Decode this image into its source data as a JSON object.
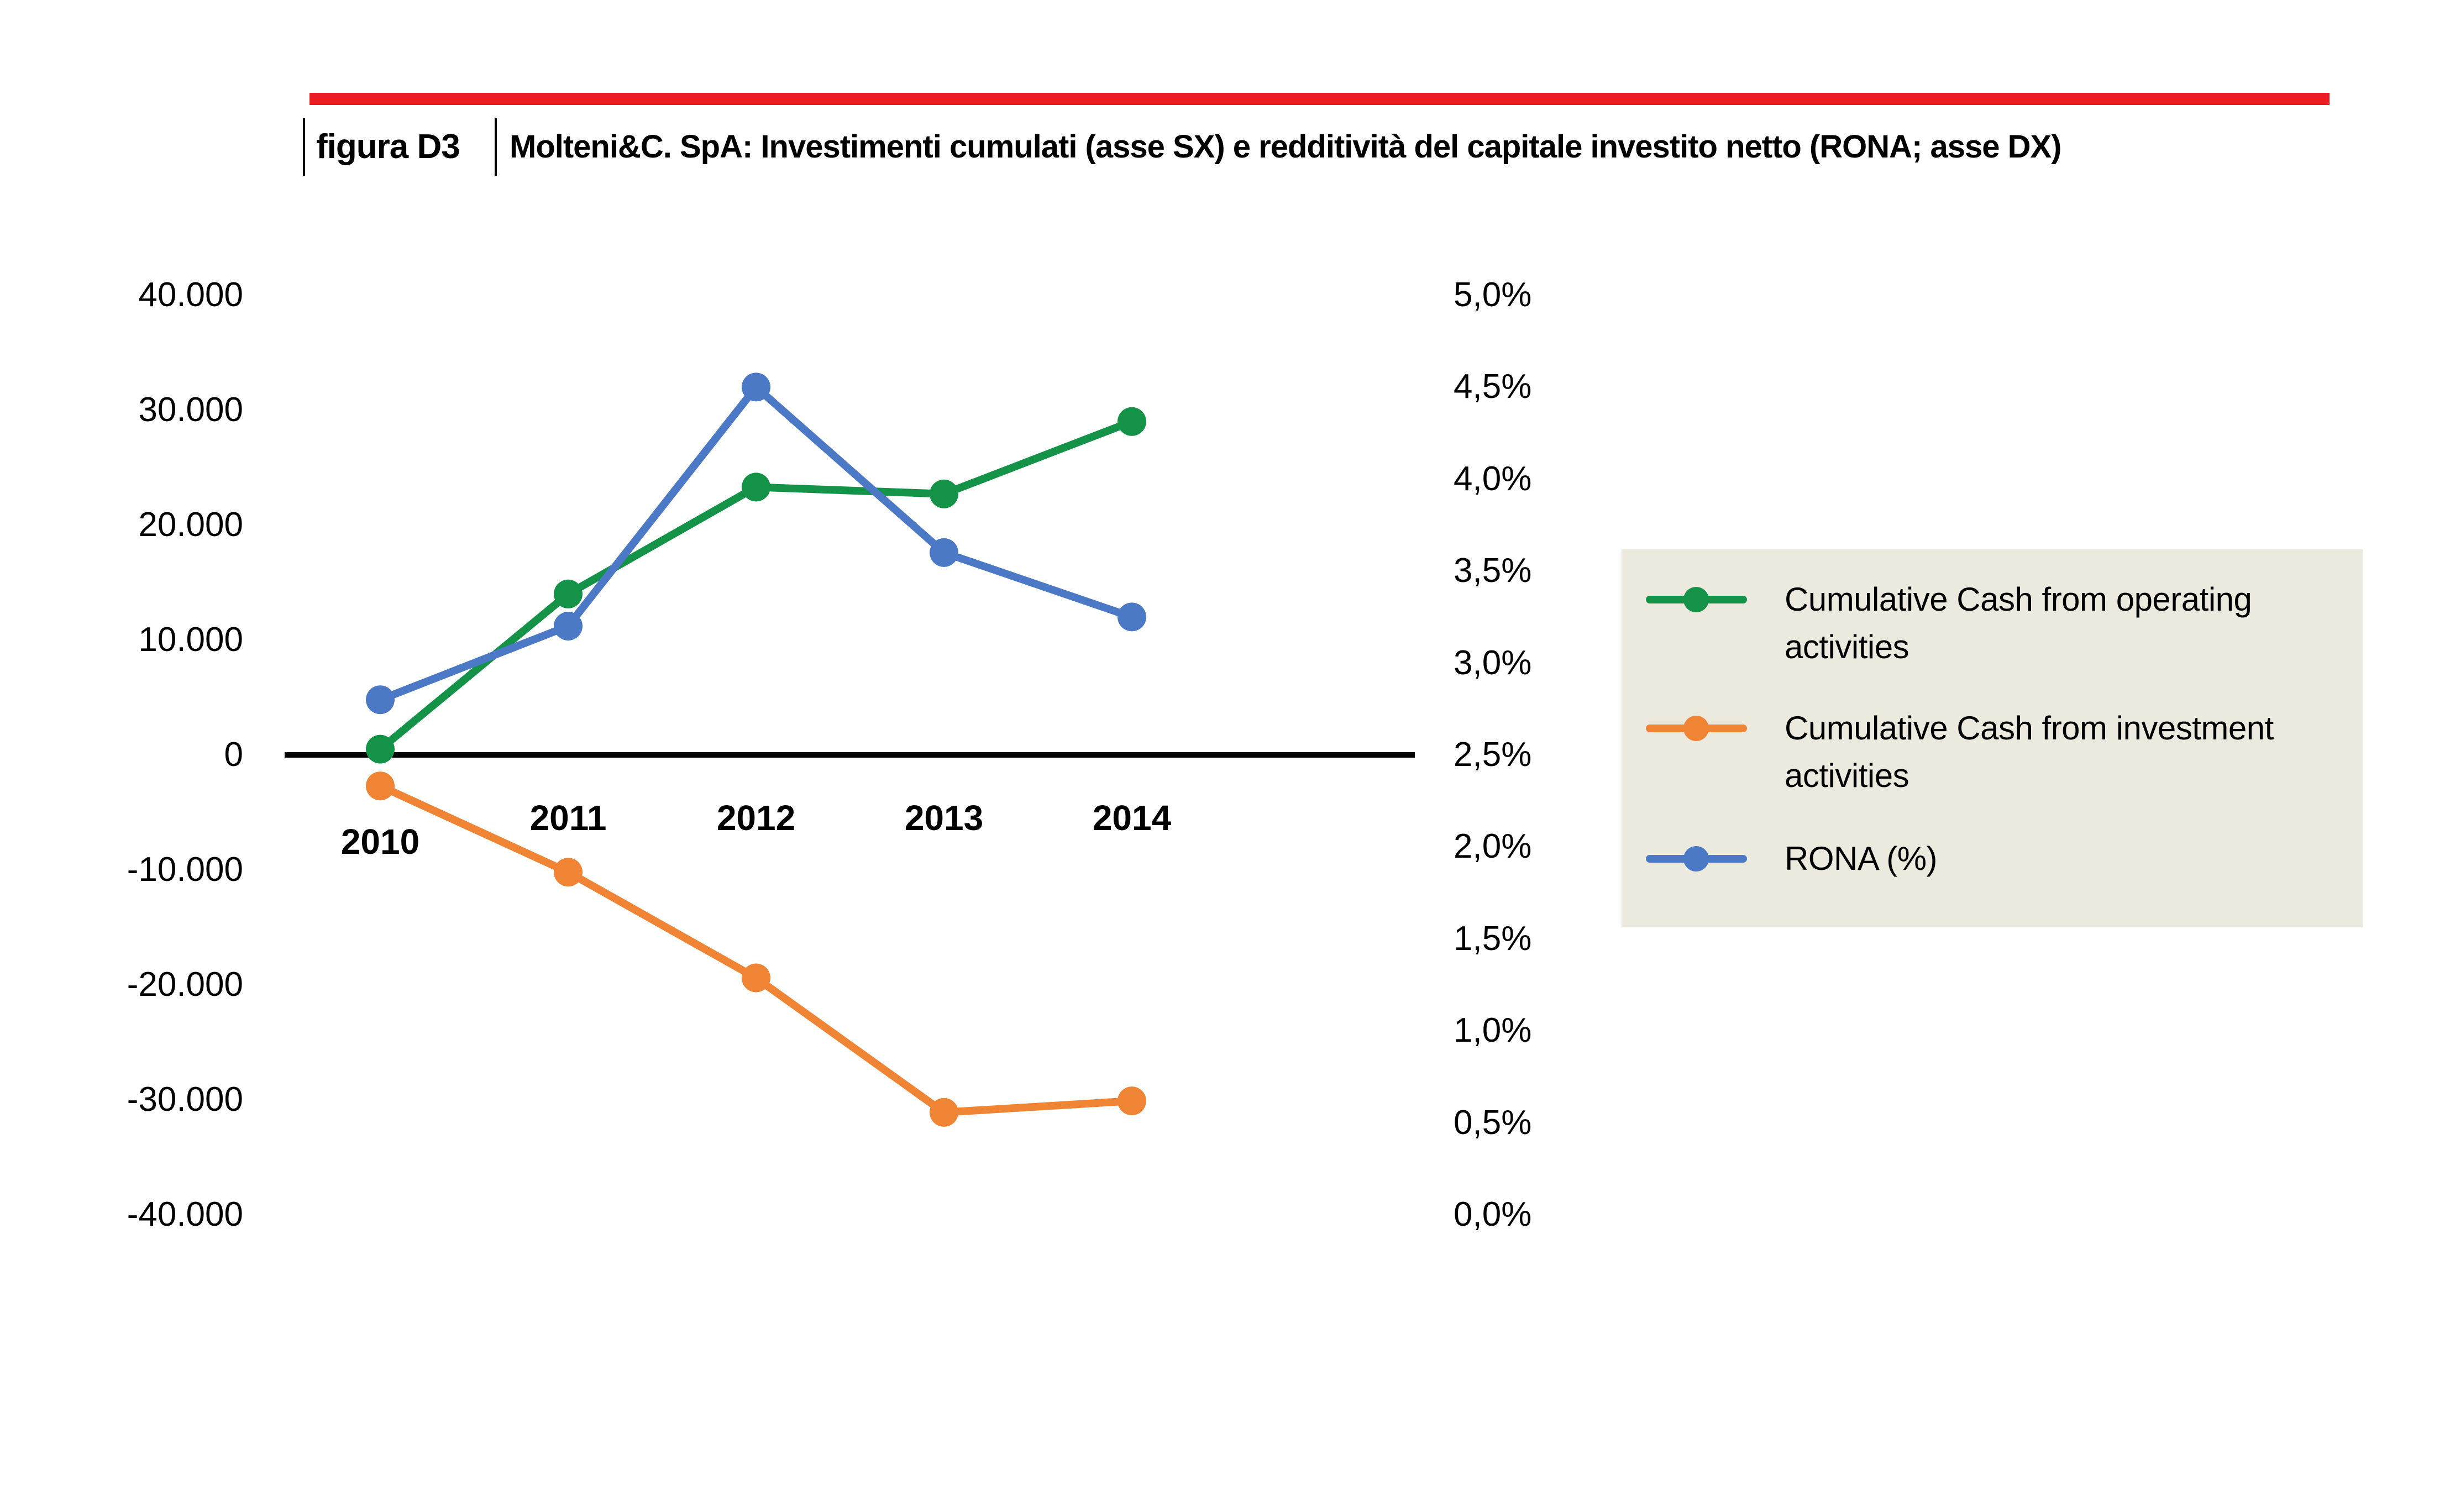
{
  "figure": {
    "label": "figura D3",
    "title": "Molteni&C. SpA: Investimenti cumulati (asse SX) e redditività del capitale investito netto (RONA; asse DX)"
  },
  "colors": {
    "accent_red": "#EC1C24",
    "operating_green": "#149348",
    "investment_orange": "#EE8434",
    "rona_blue": "#4B79C5",
    "legend_bg": "#ECEADF",
    "axis_black": "#000000"
  },
  "left_axis": {
    "tick_labels": [
      "40.000",
      "30.000",
      "20.000",
      "10.000",
      "0",
      "-10.000",
      "-20.000",
      "-30.000",
      "-40.000"
    ],
    "tick_values": [
      40000,
      30000,
      20000,
      10000,
      0,
      -10000,
      -20000,
      -30000,
      -40000
    ]
  },
  "right_axis": {
    "tick_labels": [
      "5,0%",
      "4,5%",
      "4,0%",
      "3,5%",
      "3,0%",
      "2,5%",
      "2,0%",
      "1,5%",
      "1,0%",
      "0,5%",
      "0,0%"
    ],
    "tick_values": [
      5.0,
      4.5,
      4.0,
      3.5,
      3.0,
      2.5,
      2.0,
      1.5,
      1.0,
      0.5,
      0.0
    ]
  },
  "x_axis": {
    "year_labels": [
      "2010",
      "2011",
      "2012",
      "2013",
      "2014"
    ]
  },
  "legend": {
    "items": [
      {
        "label": "Cumulative Cash from operating activities",
        "color": "#149348"
      },
      {
        "label": "Cumulative Cash from investment activities",
        "color": "#EE8434"
      },
      {
        "label": "RONA (%)",
        "color": "#4B79C5"
      }
    ]
  },
  "chart_data": {
    "type": "line",
    "x": [
      "2010",
      "2011",
      "2012",
      "2013",
      "2014"
    ],
    "series": [
      {
        "name": "Cumulative Cash from operating activities",
        "axis": "left",
        "color": "#149348",
        "values": [
          500,
          14000,
          23300,
          22700,
          29000
        ]
      },
      {
        "name": "Cumulative Cash from investment activities",
        "axis": "left",
        "color": "#EE8434",
        "values": [
          -2700,
          -10200,
          -19400,
          -31100,
          -30100
        ]
      },
      {
        "name": "RONA (%)",
        "axis": "right",
        "color": "#4B79C5",
        "values": [
          2.8,
          3.2,
          4.5,
          3.6,
          3.25
        ]
      }
    ],
    "left_axis_range": [
      -40000,
      40000
    ],
    "right_axis_range": [
      0,
      5
    ],
    "grid": false,
    "legend_position": "right"
  }
}
